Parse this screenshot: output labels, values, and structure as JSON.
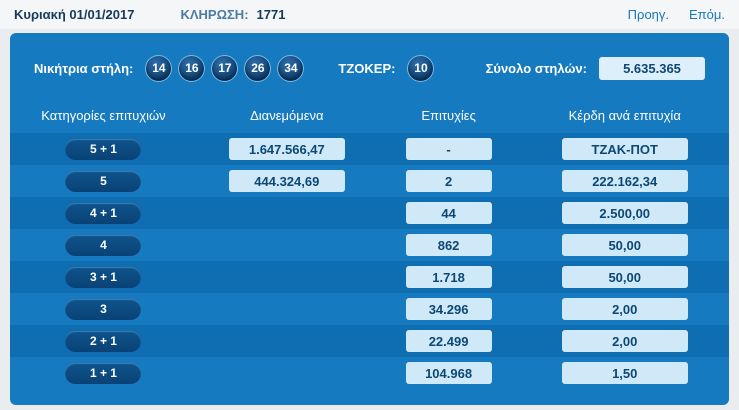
{
  "topbar": {
    "date": "Κυριακή 01/01/2017",
    "draw_label": "ΚΛΗΡΩΣΗ:",
    "draw_number": "1771",
    "prev_link": "Προηγ.",
    "next_link": "Επόμ."
  },
  "panel": {
    "winning_label": "Νικήτρια στήλη:",
    "numbers": [
      "14",
      "16",
      "17",
      "26",
      "34"
    ],
    "joker_label": "ΤΖΟΚΕΡ:",
    "joker_number": "10",
    "total_label": "Σύνολο στηλών:",
    "total_value": "5.635.365"
  },
  "table": {
    "headers": [
      "Κατηγορίες επιτυχιών",
      "Διανεμόμενα",
      "Επιτυχίες",
      "Κέρδη ανά επιτυχία"
    ],
    "rows": [
      {
        "category": "5 + 1",
        "distributed": "1.647.566,47",
        "winners": "-",
        "prize": "ΤΖΑΚ-ΠΟΤ"
      },
      {
        "category": "5",
        "distributed": "444.324,69",
        "winners": "2",
        "prize": "222.162,34"
      },
      {
        "category": "4 + 1",
        "distributed": "",
        "winners": "44",
        "prize": "2.500,00"
      },
      {
        "category": "4",
        "distributed": "",
        "winners": "862",
        "prize": "50,00"
      },
      {
        "category": "3 + 1",
        "distributed": "",
        "winners": "1.718",
        "prize": "50,00"
      },
      {
        "category": "3",
        "distributed": "",
        "winners": "34.296",
        "prize": "2,00"
      },
      {
        "category": "2 + 1",
        "distributed": "",
        "winners": "22.499",
        "prize": "2,00"
      },
      {
        "category": "1 + 1",
        "distributed": "",
        "winners": "104.968",
        "prize": "1,50"
      }
    ]
  },
  "colors": {
    "panel_blue": "#157abf",
    "stripe_blue": "#0f6db1",
    "ball_navy": "#0c3d6e",
    "value_box_bg": "#cfe9f8",
    "value_text": "#0d4875",
    "link_blue": "#1878bf"
  }
}
